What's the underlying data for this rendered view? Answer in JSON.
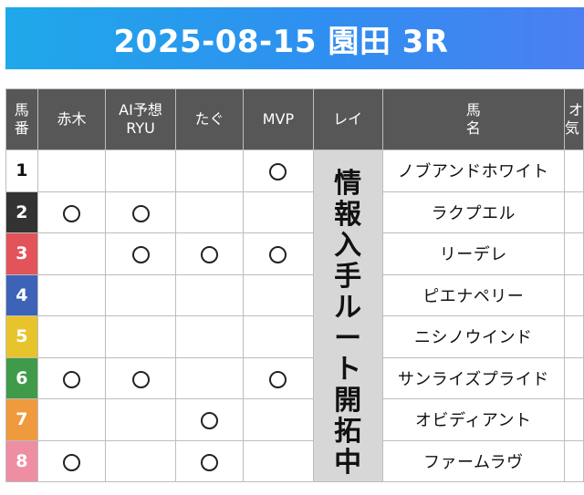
{
  "title": "2025-08-15 園田 3R",
  "headers": {
    "umaban": "馬\n番",
    "akagi": "赤木",
    "ai_ryu": "AI予想\nRYU",
    "tagu": "たぐ",
    "mvp": "MVP",
    "rei": "レイ",
    "horse_name": "馬\n名",
    "extra": "オ\n気"
  },
  "rei_note": "情報入手ルート開拓中",
  "mark_symbol": "○",
  "rows": [
    {
      "num": "1",
      "color": "#ffffff",
      "akagi": "",
      "ai_ryu": "",
      "tagu": "",
      "mvp": "○",
      "name": "ノブアンドホワイト"
    },
    {
      "num": "2",
      "color": "#333333",
      "akagi": "○",
      "ai_ryu": "○",
      "tagu": "",
      "mvp": "",
      "name": "ラクプエル"
    },
    {
      "num": "3",
      "color": "#e2535a",
      "akagi": "",
      "ai_ryu": "○",
      "tagu": "○",
      "mvp": "○",
      "name": "リーデレ"
    },
    {
      "num": "4",
      "color": "#3d63b8",
      "akagi": "",
      "ai_ryu": "",
      "tagu": "",
      "mvp": "",
      "name": "ピエナペリー"
    },
    {
      "num": "5",
      "color": "#e8c42c",
      "akagi": "",
      "ai_ryu": "",
      "tagu": "",
      "mvp": "",
      "name": "ニシノウインド"
    },
    {
      "num": "6",
      "color": "#3f9b4a",
      "akagi": "○",
      "ai_ryu": "○",
      "tagu": "",
      "mvp": "○",
      "name": "サンライズプライド"
    },
    {
      "num": "7",
      "color": "#ef9a3c",
      "akagi": "",
      "ai_ryu": "",
      "tagu": "○",
      "mvp": "",
      "name": "オビディアント"
    },
    {
      "num": "8",
      "color": "#ee8ea3",
      "akagi": "○",
      "ai_ryu": "",
      "tagu": "○",
      "mvp": "",
      "name": "ファームラヴ"
    }
  ]
}
